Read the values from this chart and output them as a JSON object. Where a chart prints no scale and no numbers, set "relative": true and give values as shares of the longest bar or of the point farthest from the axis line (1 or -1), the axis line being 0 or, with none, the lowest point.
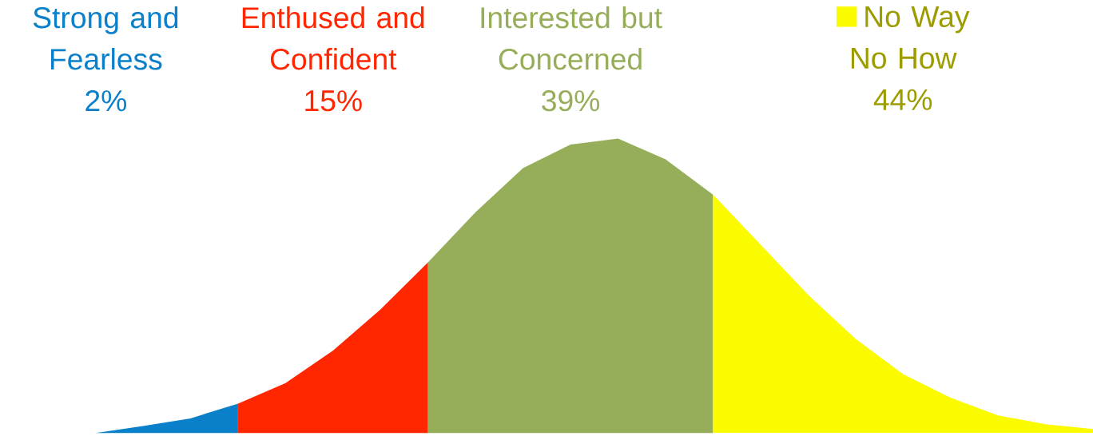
{
  "chart_data": {
    "type": "area",
    "relative": true,
    "categories": [
      null,
      null,
      null,
      null,
      null,
      null,
      null,
      null,
      null,
      null,
      null,
      null,
      null,
      null,
      null,
      null,
      null,
      null,
      null,
      null,
      null,
      null
    ],
    "series": [
      {
        "name": "Strong and Fearless",
        "color": "#0a7fca",
        "values": [
          0,
          0.024,
          0.05,
          0.1,
          null,
          null,
          null,
          null,
          null,
          null,
          null,
          null,
          null,
          null,
          null,
          null,
          null,
          null,
          null,
          null,
          null,
          null
        ]
      },
      {
        "name": "Enthused and Confident",
        "color": "#ff2600",
        "values": [
          null,
          null,
          null,
          0.1,
          0.17,
          0.28,
          0.42,
          0.58,
          null,
          null,
          null,
          null,
          null,
          null,
          null,
          null,
          null,
          null,
          null,
          null,
          null,
          null
        ]
      },
      {
        "name": "Interested but Concerned",
        "color": "#96ae59",
        "values": [
          null,
          null,
          null,
          null,
          null,
          null,
          null,
          0.58,
          0.75,
          0.9,
          0.98,
          1.0,
          0.93,
          0.81,
          null,
          null,
          null,
          null,
          null,
          null,
          null,
          null
        ]
      },
      {
        "name": "No Way No How",
        "color": "#fbfb00",
        "values": [
          null,
          null,
          null,
          null,
          null,
          null,
          null,
          null,
          null,
          null,
          null,
          null,
          null,
          0.81,
          0.64,
          0.47,
          0.32,
          0.2,
          0.12,
          0.06,
          0.03,
          0.014
        ]
      }
    ],
    "annotations": [
      "2%",
      "15%",
      "39%",
      "44%"
    ]
  }
}
